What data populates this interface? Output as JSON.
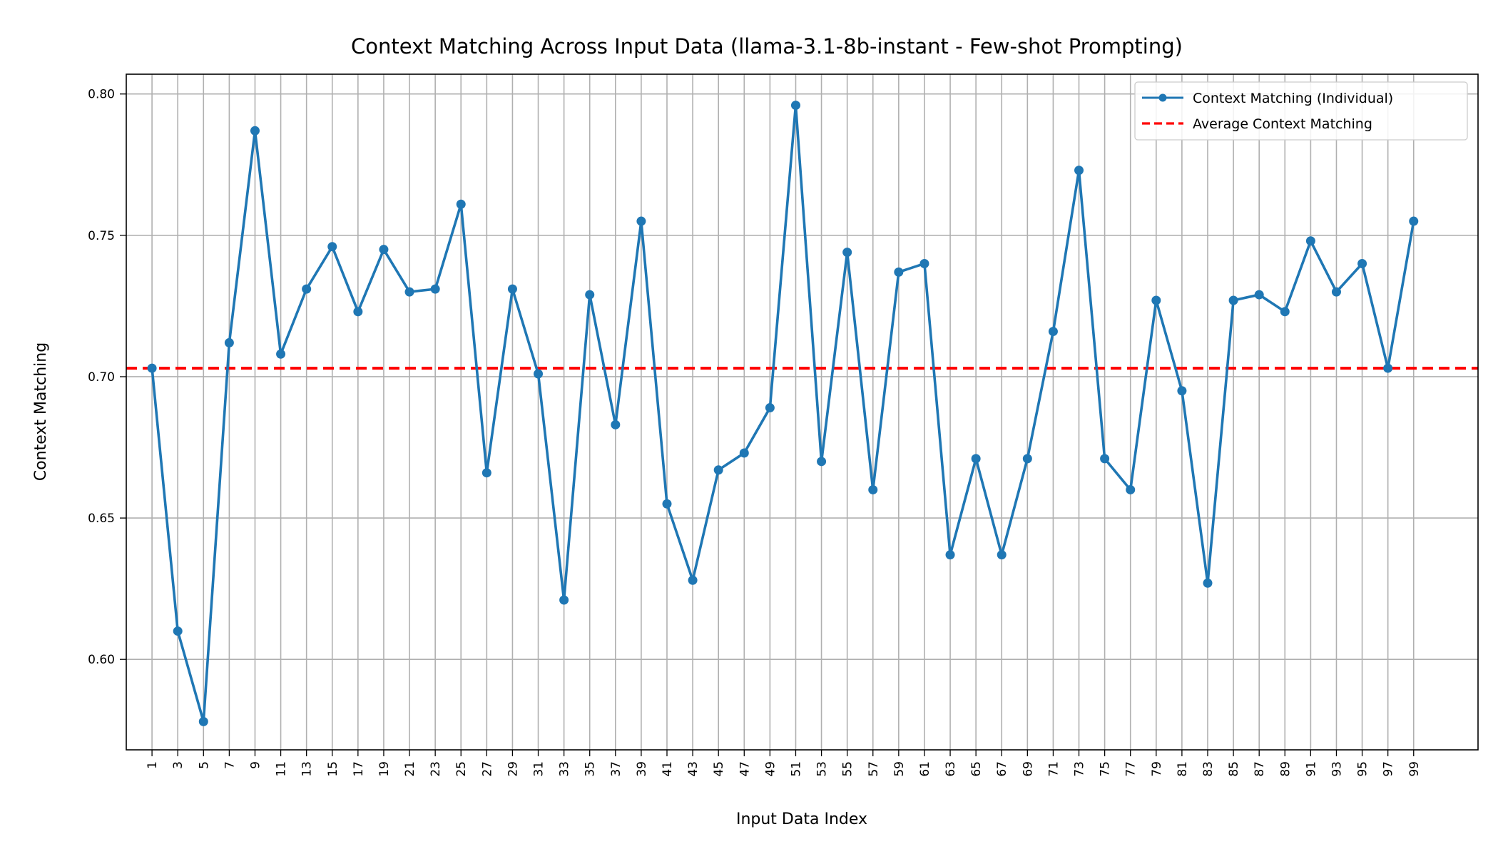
{
  "chart_data": {
    "type": "line",
    "title": "Context Matching Across Input Data (llama-3.1-8b-instant - Few-shot Prompting)",
    "xlabel": "Input Data Index",
    "ylabel": "Context Matching",
    "xlim": [
      -1.0,
      104.0
    ],
    "ylim": [
      0.568,
      0.807
    ],
    "x_ticks": [
      1,
      3,
      5,
      7,
      9,
      11,
      13,
      15,
      17,
      19,
      21,
      23,
      25,
      27,
      29,
      31,
      33,
      35,
      37,
      39,
      41,
      43,
      45,
      47,
      49,
      51,
      53,
      55,
      57,
      59,
      61,
      63,
      65,
      67,
      69,
      71,
      73,
      75,
      77,
      79,
      81,
      83,
      85,
      87,
      89,
      91,
      93,
      95,
      97,
      99
    ],
    "y_ticks": [
      0.6,
      0.65,
      0.7,
      0.75,
      0.8
    ],
    "y_tick_labels": [
      "0.60",
      "0.65",
      "0.70",
      "0.75",
      "0.80"
    ],
    "grid": true,
    "legend_position": "top-right",
    "series": [
      {
        "name": "Context Matching (Individual)",
        "color": "#1f77b4",
        "x": [
          1,
          3,
          5,
          7,
          9,
          11,
          13,
          15,
          17,
          19,
          21,
          23,
          25,
          27,
          29,
          31,
          33,
          35,
          37,
          39,
          41,
          43,
          45,
          47,
          49,
          51,
          53,
          55,
          57,
          59,
          61,
          63,
          65,
          67,
          69,
          71,
          73,
          75,
          77,
          79,
          81,
          83,
          85,
          87,
          89,
          91,
          93,
          95,
          97,
          99
        ],
        "values": [
          0.703,
          0.61,
          0.578,
          0.712,
          0.787,
          0.708,
          0.731,
          0.746,
          0.723,
          0.745,
          0.73,
          0.731,
          0.761,
          0.666,
          0.731,
          0.701,
          0.621,
          0.729,
          0.683,
          0.755,
          0.655,
          0.628,
          0.667,
          0.673,
          0.689,
          0.796,
          0.67,
          0.744,
          0.66,
          0.737,
          0.74,
          0.637,
          0.671,
          0.637,
          0.671,
          0.716,
          0.773,
          0.671,
          0.66,
          0.727,
          0.695,
          0.627,
          0.727,
          0.729,
          0.723,
          0.748,
          0.73,
          0.74,
          0.703,
          0.755
        ]
      },
      {
        "name": "Average Context Matching",
        "color": "#ff0000",
        "style": "dashed",
        "value": 0.703
      }
    ]
  }
}
